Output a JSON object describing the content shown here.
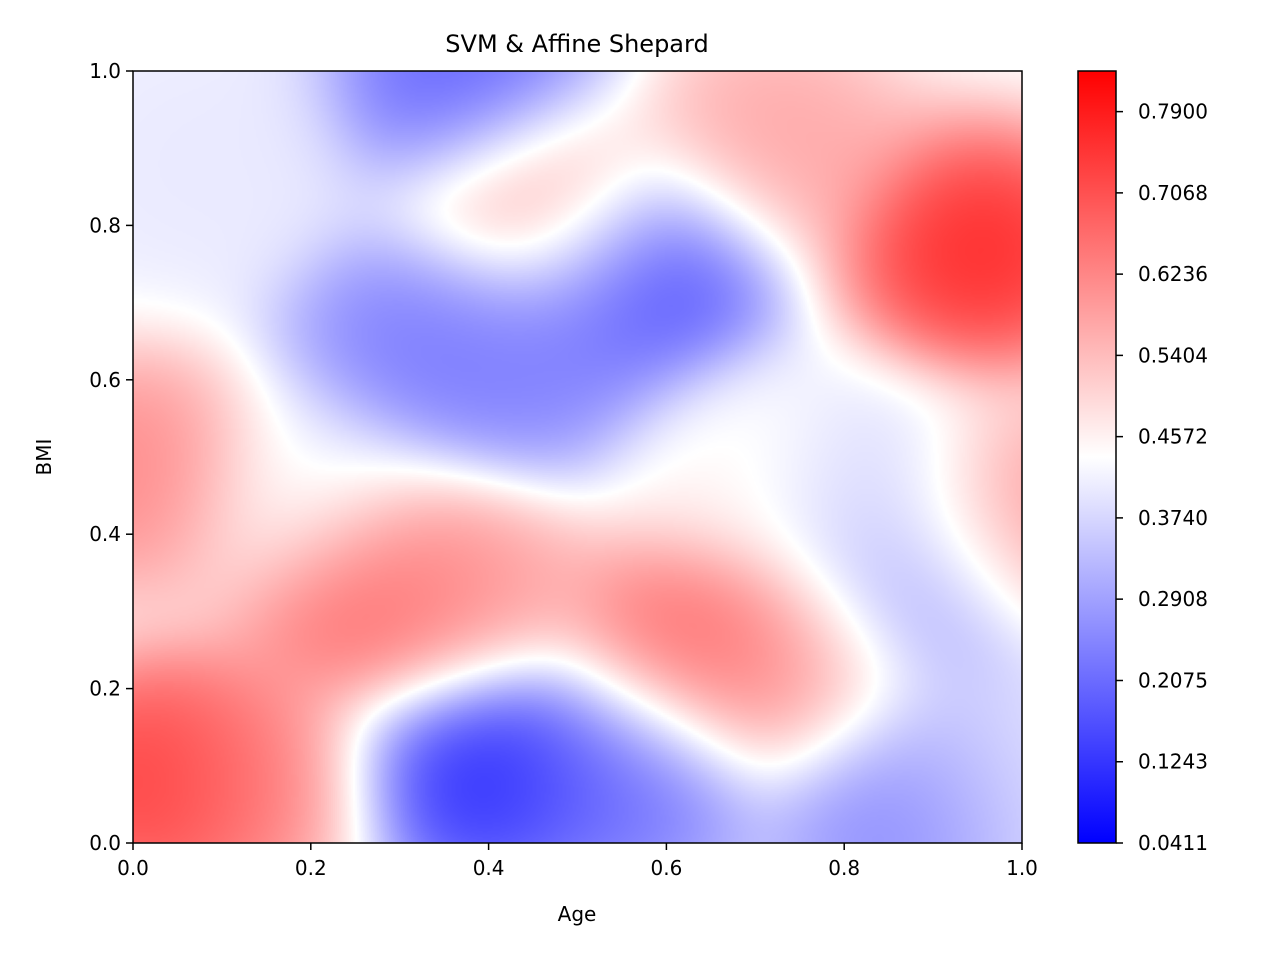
{
  "chart_data": {
    "type": "heatmap",
    "title": "SVM & Affine Shepard",
    "xlabel": "Age",
    "ylabel": "BMI",
    "xlim": [
      0.0,
      1.0
    ],
    "ylim": [
      0.0,
      1.0
    ],
    "x_ticks": [
      "0.0",
      "0.2",
      "0.4",
      "0.6",
      "0.8",
      "1.0"
    ],
    "y_ticks": [
      "0.0",
      "0.2",
      "0.4",
      "0.6",
      "0.8",
      "1.0"
    ],
    "colorbar": {
      "min": 0.0411,
      "max": 0.8316,
      "ticks": [
        0.0411,
        0.1243,
        0.2075,
        0.2908,
        0.374,
        0.4572,
        0.5404,
        0.6236,
        0.7068,
        0.79
      ],
      "tick_labels": [
        "0.0411",
        "0.1243",
        "0.2075",
        "0.2908",
        "0.3740",
        "0.4572",
        "0.5404",
        "0.6236",
        "0.7068",
        "0.7900"
      ],
      "colormap": "bwr",
      "low_color": "#0000ff",
      "mid_color": "#ffffff",
      "high_color": "#ff0000"
    },
    "grid": false,
    "features": [
      {
        "x": 0.04,
        "y": 0.08,
        "value": 0.82
      },
      {
        "x": 0.13,
        "y": 0.08,
        "value": 0.62
      },
      {
        "x": 0.01,
        "y": 0.48,
        "value": 0.66
      },
      {
        "x": 0.08,
        "y": 0.88,
        "value": 0.4
      },
      {
        "x": 0.38,
        "y": 0.98,
        "value": 0.14
      },
      {
        "x": 0.46,
        "y": 0.83,
        "value": 0.66
      },
      {
        "x": 0.72,
        "y": 0.91,
        "value": 0.6
      },
      {
        "x": 0.95,
        "y": 0.77,
        "value": 0.83
      },
      {
        "x": 0.57,
        "y": 0.74,
        "value": 0.1
      },
      {
        "x": 0.33,
        "y": 0.65,
        "value": 0.2
      },
      {
        "x": 0.45,
        "y": 0.62,
        "value": 0.22
      },
      {
        "x": 0.27,
        "y": 0.32,
        "value": 0.74
      },
      {
        "x": 0.37,
        "y": 0.33,
        "value": 0.6
      },
      {
        "x": 0.63,
        "y": 0.26,
        "value": 0.72
      },
      {
        "x": 0.76,
        "y": 0.23,
        "value": 0.62
      },
      {
        "x": 0.39,
        "y": 0.1,
        "value": 0.05
      },
      {
        "x": 0.55,
        "y": 0.09,
        "value": 0.18
      },
      {
        "x": 0.89,
        "y": 0.32,
        "value": 0.2
      },
      {
        "x": 0.99,
        "y": 0.4,
        "value": 0.66
      },
      {
        "x": 0.82,
        "y": 0.45,
        "value": 0.36
      },
      {
        "x": 0.68,
        "y": 0.48,
        "value": 0.46
      },
      {
        "x": 0.97,
        "y": 0.1,
        "value": 0.4
      },
      {
        "x": 0.2,
        "y": 0.45,
        "value": 0.4
      },
      {
        "x": 0.87,
        "y": 0.06,
        "value": 0.2
      }
    ]
  }
}
